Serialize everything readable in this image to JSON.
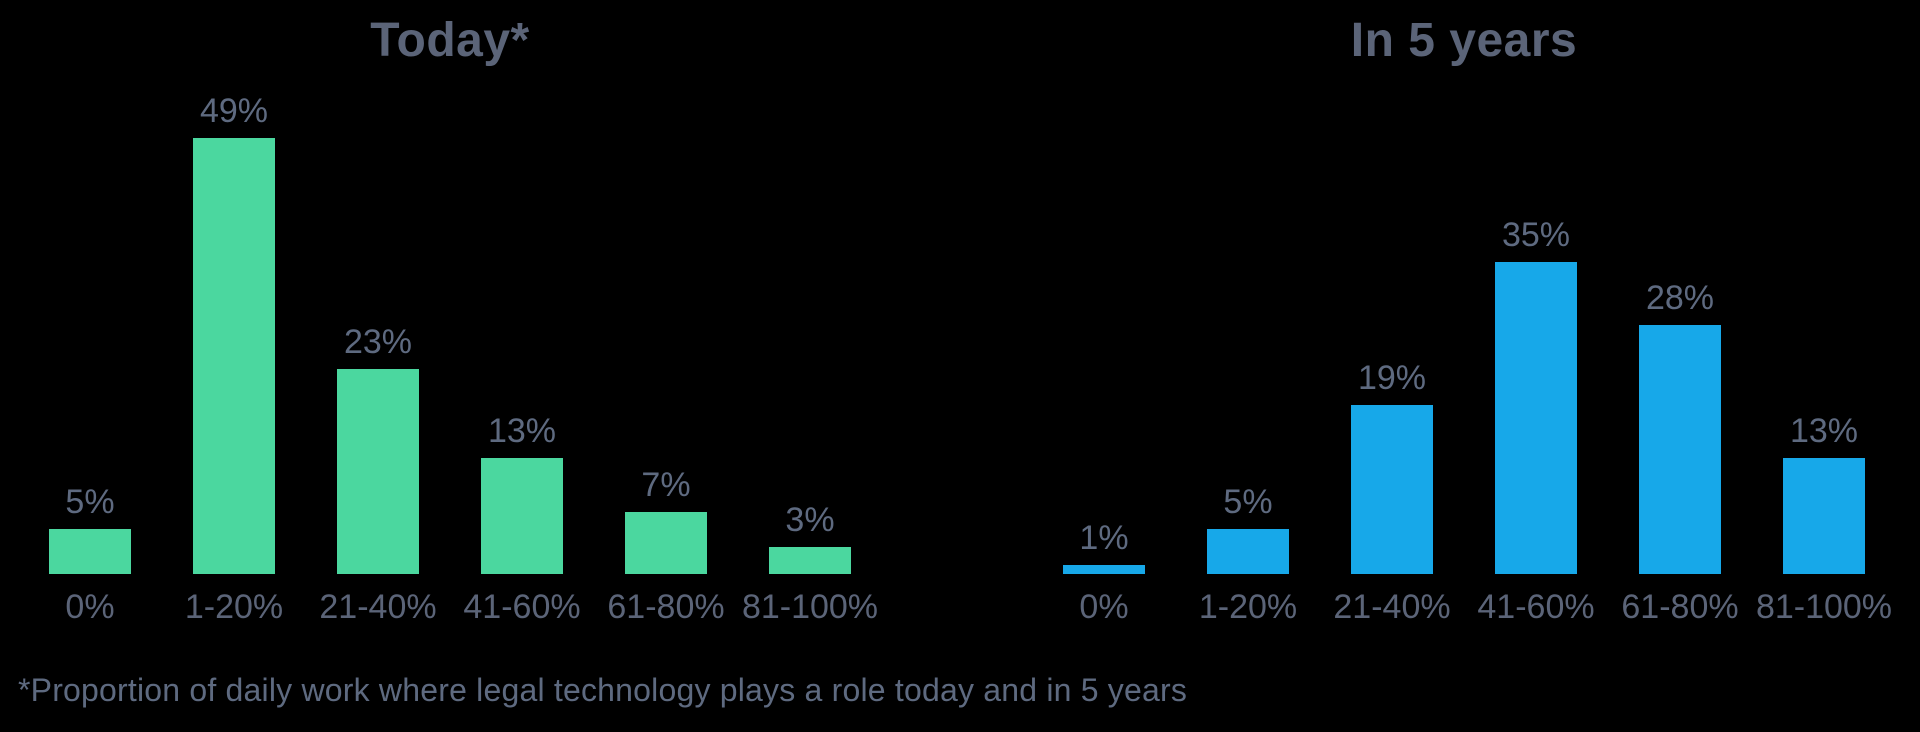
{
  "background_color": "#000000",
  "text_color": "#5e6a80",
  "footnote": "*Proportion of daily work where legal technology plays a role today and in 5 years",
  "chart_data": [
    {
      "type": "bar",
      "title": "Today*",
      "categories": [
        "0%",
        "1-20%",
        "21-40%",
        "41-60%",
        "61-80%",
        "81-100%"
      ],
      "values": [
        5,
        49,
        23,
        13,
        7,
        3
      ],
      "value_labels": [
        "5%",
        "49%",
        "23%",
        "13%",
        "7%",
        "3%"
      ],
      "bar_color": "#4bd79f",
      "xlabel": "",
      "ylabel": "",
      "ylim": [
        0,
        55
      ],
      "grid": false,
      "legend": false,
      "value_labels_position": "above-bars"
    },
    {
      "type": "bar",
      "title": "In 5 years",
      "categories": [
        "0%",
        "1-20%",
        "21-40%",
        "41-60%",
        "61-80%",
        "81-100%"
      ],
      "values": [
        1,
        5,
        19,
        35,
        28,
        13
      ],
      "value_labels": [
        "1%",
        "5%",
        "19%",
        "35%",
        "28%",
        "13%"
      ],
      "bar_color": "#17a8e9",
      "xlabel": "",
      "ylabel": "",
      "ylim": [
        0,
        55
      ],
      "grid": false,
      "legend": false,
      "value_labels_position": "above-bars"
    }
  ]
}
